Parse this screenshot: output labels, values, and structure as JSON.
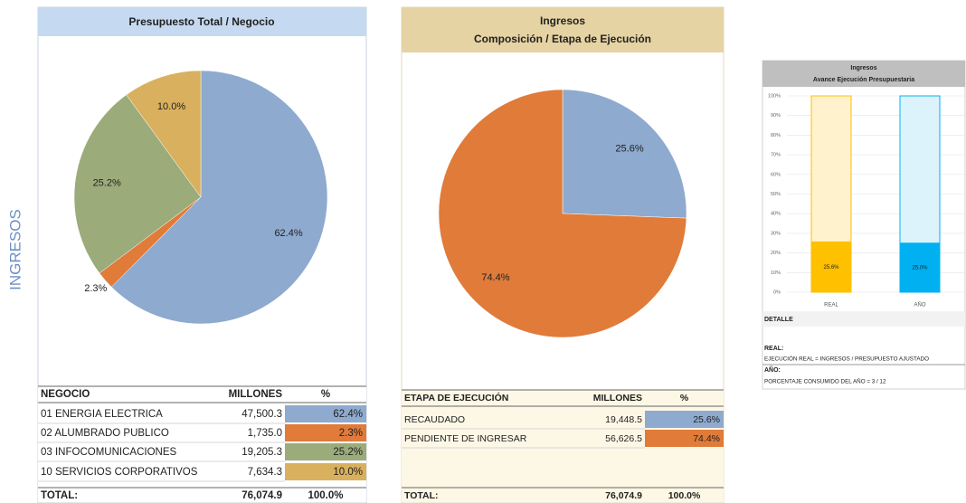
{
  "side_label": "INGRESOS",
  "chart_data": [
    {
      "type": "pie",
      "title": "Presupuesto Total / Negocio",
      "categories": [
        "01 ENERGIA ELECTRICA",
        "02 ALUMBRADO PUBLICO",
        "03 INFOCOMUNICACIONES",
        "10 SERVICIOS CORPORATIVOS"
      ],
      "values": [
        62.4,
        2.3,
        25.2,
        10.0
      ],
      "value_labels": [
        "62.4%",
        "2.3%",
        "25.2%",
        "10.0%"
      ],
      "colors": [
        "#8eaacf",
        "#e07b39",
        "#9bab7a",
        "#d9b05e"
      ]
    },
    {
      "type": "pie",
      "title": "Ingresos",
      "subtitle": "Composición / Etapa de Ejecución",
      "categories": [
        "RECAUDADO",
        "PENDIENTE DE INGRESAR"
      ],
      "values": [
        25.6,
        74.4
      ],
      "value_labels": [
        "25.6%",
        "74.4%"
      ],
      "colors": [
        "#8eaacf",
        "#e07b39"
      ]
    },
    {
      "type": "bar",
      "title": "Ingresos",
      "subtitle": "Avance Ejecución Presupuestaria",
      "categories": [
        "REAL",
        "AÑO"
      ],
      "series": [
        {
          "values": [
            25.6,
            25.0
          ],
          "value_labels": [
            "25.6%",
            "25.0%"
          ],
          "colors": [
            "#ffc000",
            "#00b0f0"
          ]
        },
        {
          "values": [
            74.4,
            75.0
          ],
          "colors": [
            "#fff2cc",
            "#ddf3fc"
          ]
        }
      ],
      "ylim": [
        0,
        100
      ],
      "yticks": [
        {
          "value": 0,
          "label": "0%"
        },
        {
          "value": 10,
          "label": "10%"
        },
        {
          "value": 20,
          "label": "20%"
        },
        {
          "value": 30,
          "label": "30%"
        },
        {
          "value": 40,
          "label": "40%"
        },
        {
          "value": 50,
          "label": "50%"
        },
        {
          "value": 60,
          "label": "60%"
        },
        {
          "value": 70,
          "label": "70%"
        },
        {
          "value": 80,
          "label": "80%"
        },
        {
          "value": 90,
          "label": "90%"
        },
        {
          "value": 100,
          "label": "100%"
        }
      ],
      "grid": true
    }
  ],
  "tables": [
    {
      "header": [
        "NEGOCIO",
        "MILLONES",
        "%"
      ],
      "rows": [
        [
          "01 ENERGIA ELECTRICA",
          "47,500.3",
          "62.4%"
        ],
        [
          "02 ALUMBRADO PUBLICO",
          "1,735.0",
          "2.3%"
        ],
        [
          "03 INFOCOMUNICACIONES",
          "19,205.3",
          "25.2%"
        ],
        [
          "10 SERVICIOS CORPORATIVOS",
          "7,634.3",
          "10.0%"
        ]
      ],
      "total": [
        "TOTAL:",
        "76,074.9",
        "100.0%"
      ]
    },
    {
      "header": [
        "ETAPA DE EJECUCIÓN",
        "MILLONES",
        "%"
      ],
      "rows": [
        [
          "RECAUDADO",
          "19,448.5",
          "25.6%"
        ],
        [
          "PENDIENTE DE INGRESAR",
          "56,626.5",
          "74.4%"
        ]
      ],
      "total": [
        "TOTAL:",
        "76,074.9",
        "100.0%"
      ]
    }
  ],
  "detail": {
    "title": "DETALLE",
    "real_label": "REAL:",
    "real_formula": "EJECUCIÓN REAL = INGRESOS / PRESUPUESTO AJUSTADO",
    "year_label": "AÑO:",
    "year_formula": "PORCENTAJE CONSUMIDO DEL AÑO = 3 / 12"
  }
}
